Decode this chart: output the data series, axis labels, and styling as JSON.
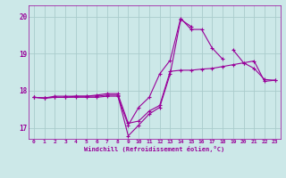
{
  "bg_color": "#cce8e8",
  "grid_color": "#aacccc",
  "line_color": "#990099",
  "marker_color": "#990099",
  "xlabel": "Windchill (Refroidissement éolien,°C)",
  "ylim": [
    16.7,
    20.3
  ],
  "xlim": [
    -0.5,
    23.5
  ],
  "yticks": [
    17,
    18,
    19,
    20
  ],
  "xticks": [
    0,
    1,
    2,
    3,
    4,
    5,
    6,
    7,
    8,
    9,
    10,
    11,
    12,
    13,
    14,
    15,
    16,
    17,
    18,
    19,
    20,
    21,
    22,
    23
  ],
  "series1_y": [
    17.82,
    17.8,
    17.85,
    17.85,
    17.85,
    17.85,
    17.85,
    17.88,
    17.88,
    16.78,
    17.07,
    17.37,
    17.55,
    18.45,
    19.92,
    19.73,
    null,
    null,
    null,
    19.1,
    18.75,
    18.6,
    18.3,
    18.28
  ],
  "series2_y": [
    17.82,
    17.8,
    17.82,
    17.82,
    17.82,
    17.82,
    17.82,
    17.85,
    17.85,
    17.07,
    17.55,
    17.82,
    18.45,
    18.82,
    19.95,
    19.65,
    19.65,
    19.15,
    18.85,
    null,
    null,
    null,
    null,
    null
  ],
  "series3_y": [
    17.82,
    17.8,
    17.82,
    17.82,
    17.85,
    17.85,
    17.88,
    17.92,
    17.92,
    17.12,
    17.18,
    17.45,
    17.6,
    18.52,
    18.55,
    18.55,
    18.58,
    18.6,
    18.65,
    18.7,
    18.75,
    18.8,
    18.25,
    18.28
  ],
  "figsize": [
    3.2,
    2.0
  ],
  "dpi": 100,
  "lw": 0.8,
  "ms": 3.5,
  "mew": 0.8
}
